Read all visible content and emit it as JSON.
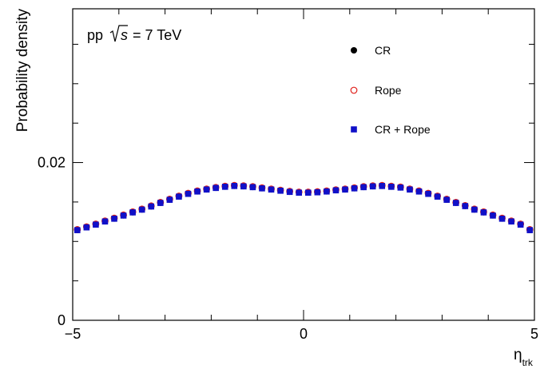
{
  "chart_data": {
    "type": "scatter",
    "annotation": {
      "prefix": "pp",
      "sqrt_s": "s",
      "suffix": "= 7 TeV"
    },
    "xlabel": "η",
    "xlabel_sub": "trk",
    "ylabel": "Probability density",
    "xlim": [
      -5,
      5
    ],
    "ylim": [
      0,
      0.0395
    ],
    "xticks": [
      -5,
      0,
      5
    ],
    "xtick_labels": [
      "−5",
      "0",
      "5"
    ],
    "yticks": [
      0,
      0.02
    ],
    "ytick_labels": [
      "0",
      "0.02"
    ],
    "grid": false,
    "legend_position": "top-right",
    "x": [
      -4.9,
      -4.7,
      -4.5,
      -4.3,
      -4.1,
      -3.9,
      -3.7,
      -3.5,
      -3.3,
      -3.1,
      -2.9,
      -2.7,
      -2.5,
      -2.3,
      -2.1,
      -1.9,
      -1.7,
      -1.5,
      -1.3,
      -1.1,
      -0.9,
      -0.7,
      -0.5,
      -0.3,
      -0.1,
      0.1,
      0.3,
      0.5,
      0.7,
      0.9,
      1.1,
      1.3,
      1.5,
      1.7,
      1.9,
      2.1,
      2.3,
      2.5,
      2.7,
      2.9,
      3.1,
      3.3,
      3.5,
      3.7,
      3.9,
      4.1,
      4.3,
      4.5,
      4.7,
      4.9
    ],
    "series": [
      {
        "name": "CR",
        "marker": "filled-circle",
        "color": "#000000",
        "values": [
          0.01145,
          0.0118,
          0.01215,
          0.01255,
          0.0129,
          0.0133,
          0.0137,
          0.01405,
          0.01445,
          0.0149,
          0.0153,
          0.0157,
          0.01605,
          0.01635,
          0.0166,
          0.0168,
          0.01695,
          0.01705,
          0.017,
          0.0169,
          0.01675,
          0.0166,
          0.01645,
          0.0163,
          0.0162,
          0.0162,
          0.01625,
          0.01635,
          0.0165,
          0.0166,
          0.01675,
          0.0169,
          0.017,
          0.01705,
          0.01695,
          0.01685,
          0.0166,
          0.01635,
          0.01605,
          0.0157,
          0.0153,
          0.0149,
          0.0145,
          0.01405,
          0.0137,
          0.0133,
          0.0129,
          0.01255,
          0.01215,
          0.01145
        ]
      },
      {
        "name": "Rope",
        "marker": "open-circle",
        "color": "#e0201b",
        "values": [
          0.0115,
          0.01185,
          0.0122,
          0.0126,
          0.01295,
          0.01335,
          0.01375,
          0.0141,
          0.0145,
          0.01495,
          0.01535,
          0.01575,
          0.0161,
          0.0164,
          0.01665,
          0.01685,
          0.017,
          0.0171,
          0.01705,
          0.01695,
          0.0168,
          0.01665,
          0.0165,
          0.01635,
          0.01625,
          0.01625,
          0.0163,
          0.0164,
          0.01655,
          0.01665,
          0.0168,
          0.01695,
          0.01705,
          0.0171,
          0.017,
          0.0169,
          0.01665,
          0.0164,
          0.0161,
          0.01575,
          0.01535,
          0.01495,
          0.01455,
          0.0141,
          0.01375,
          0.01335,
          0.01295,
          0.0126,
          0.0122,
          0.0115
        ]
      },
      {
        "name": "CR + Rope",
        "marker": "filled-square",
        "color": "#1010c8",
        "values": [
          0.01143,
          0.01178,
          0.01213,
          0.01253,
          0.01288,
          0.01328,
          0.01368,
          0.01403,
          0.01443,
          0.01488,
          0.01528,
          0.01568,
          0.01603,
          0.01633,
          0.01658,
          0.01678,
          0.01693,
          0.01703,
          0.01698,
          0.01688,
          0.01673,
          0.01658,
          0.01643,
          0.01628,
          0.01618,
          0.01618,
          0.01623,
          0.01633,
          0.01648,
          0.01658,
          0.01673,
          0.01688,
          0.01698,
          0.01703,
          0.01693,
          0.01683,
          0.01658,
          0.01633,
          0.01603,
          0.01568,
          0.01528,
          0.01488,
          0.01448,
          0.01403,
          0.01368,
          0.01328,
          0.01288,
          0.01253,
          0.01213,
          0.01143
        ]
      }
    ]
  }
}
